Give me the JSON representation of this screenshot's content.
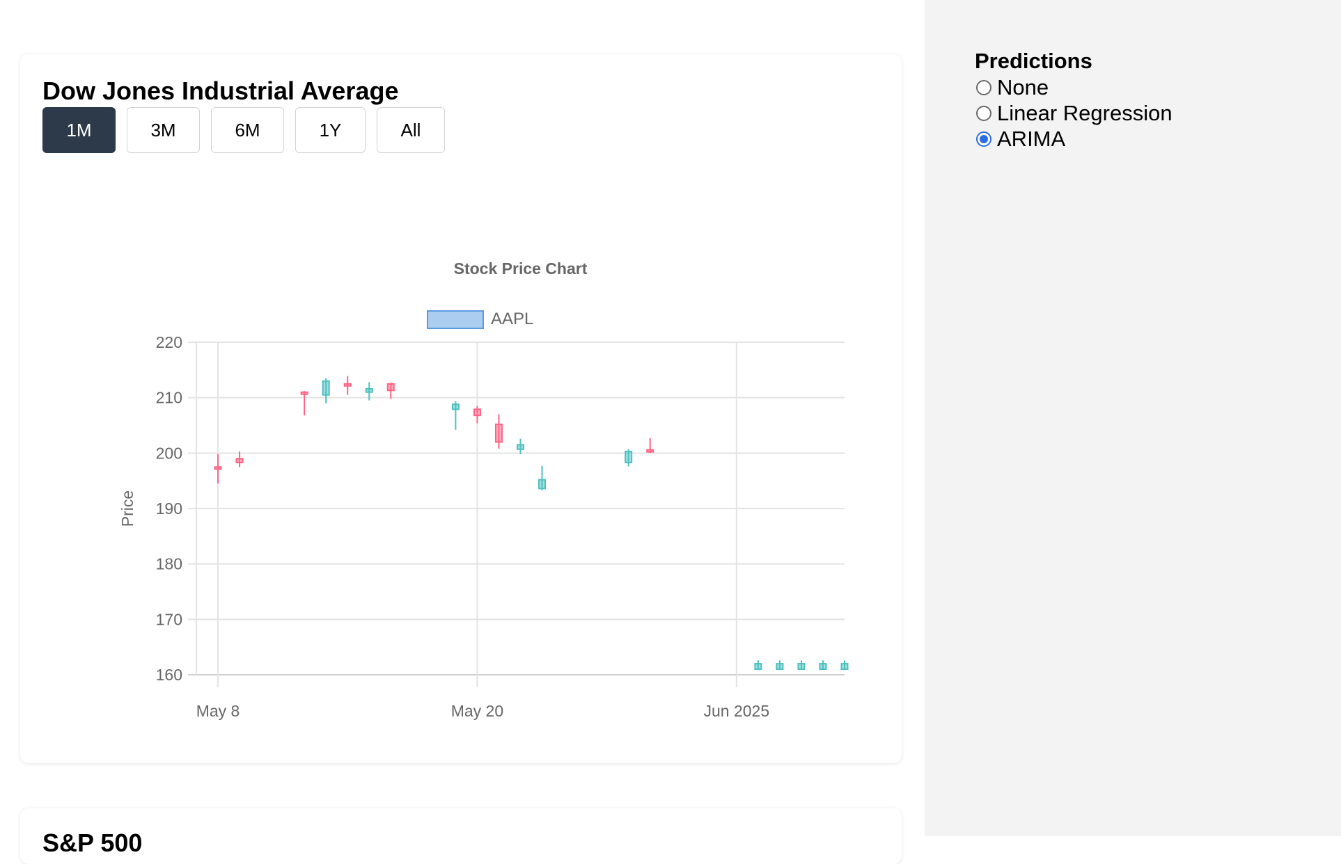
{
  "dashboard": {
    "cards": [
      {
        "title": "Dow Jones Industrial Average",
        "range_buttons": [
          "1M",
          "3M",
          "6M",
          "1Y",
          "All"
        ],
        "active_range": "1M"
      },
      {
        "title": "S&P 500"
      }
    ]
  },
  "predictions": {
    "title": "Predictions",
    "options": [
      "None",
      "Linear Regression",
      "ARIMA"
    ],
    "selected": "ARIMA"
  },
  "colors": {
    "up": "#4bc0c0",
    "down": "#ff6384",
    "active_button": "#2d3a4a",
    "radio_selected": "#2b6de0",
    "sidebar_bg": "#f3f3f3",
    "legend_fill": "#abcdf0",
    "legend_border": "#5b9ae0"
  },
  "chart_data": {
    "type": "candlestick",
    "title": "Stock Price Chart",
    "ylabel": "Price",
    "xlabel": "",
    "legend": {
      "labels": [
        "AAPL"
      ],
      "placement": "top-center"
    },
    "ylim": [
      160,
      220
    ],
    "yticks": [
      160,
      170,
      180,
      190,
      200,
      210,
      220
    ],
    "xlim": [
      "2025-05-07",
      "2025-06-06"
    ],
    "xticks": [
      {
        "date": "2025-05-08",
        "label": "May 8"
      },
      {
        "date": "2025-05-20",
        "label": "May 20"
      },
      {
        "date": "2025-06-01",
        "label": "Jun 2025"
      }
    ],
    "grid": true,
    "series": [
      {
        "name": "AAPL",
        "points": [
          {
            "date": "2025-05-08",
            "open": 197.5,
            "high": 199.8,
            "low": 194.5,
            "close": 197.2
          },
          {
            "date": "2025-05-09",
            "open": 199.0,
            "high": 200.3,
            "low": 197.5,
            "close": 198.3
          },
          {
            "date": "2025-05-12",
            "open": 211.0,
            "high": 211.2,
            "low": 206.8,
            "close": 210.8
          },
          {
            "date": "2025-05-13",
            "open": 210.5,
            "high": 213.5,
            "low": 209.0,
            "close": 213.0
          },
          {
            "date": "2025-05-14",
            "open": 212.5,
            "high": 213.9,
            "low": 210.5,
            "close": 212.3
          },
          {
            "date": "2025-05-15",
            "open": 211.0,
            "high": 212.8,
            "low": 209.5,
            "close": 211.6
          },
          {
            "date": "2025-05-16",
            "open": 212.5,
            "high": 212.7,
            "low": 209.8,
            "close": 211.3
          },
          {
            "date": "2025-05-19",
            "open": 207.9,
            "high": 209.4,
            "low": 204.2,
            "close": 208.8
          },
          {
            "date": "2025-05-20",
            "open": 207.9,
            "high": 208.5,
            "low": 205.4,
            "close": 206.8
          },
          {
            "date": "2025-05-21",
            "open": 205.2,
            "high": 207.0,
            "low": 200.8,
            "close": 202.0
          },
          {
            "date": "2025-05-22",
            "open": 200.7,
            "high": 202.6,
            "low": 199.8,
            "close": 201.5
          },
          {
            "date": "2025-05-23",
            "open": 193.6,
            "high": 197.7,
            "low": 193.3,
            "close": 195.2
          },
          {
            "date": "2025-05-27",
            "open": 198.3,
            "high": 200.7,
            "low": 197.6,
            "close": 200.3
          },
          {
            "date": "2025-05-28",
            "open": 200.6,
            "high": 202.7,
            "low": 200.0,
            "close": 200.3
          },
          {
            "date": "2025-06-02",
            "open": 161.0,
            "high": 162.6,
            "low": 160.9,
            "close": 162.0
          },
          {
            "date": "2025-06-03",
            "open": 161.0,
            "high": 162.6,
            "low": 160.9,
            "close": 162.0
          },
          {
            "date": "2025-06-04",
            "open": 161.0,
            "high": 162.6,
            "low": 160.9,
            "close": 162.0
          },
          {
            "date": "2025-06-05",
            "open": 161.0,
            "high": 162.6,
            "low": 160.9,
            "close": 162.0
          },
          {
            "date": "2025-06-06",
            "open": 161.0,
            "high": 162.6,
            "low": 160.9,
            "close": 162.0
          }
        ]
      }
    ]
  }
}
